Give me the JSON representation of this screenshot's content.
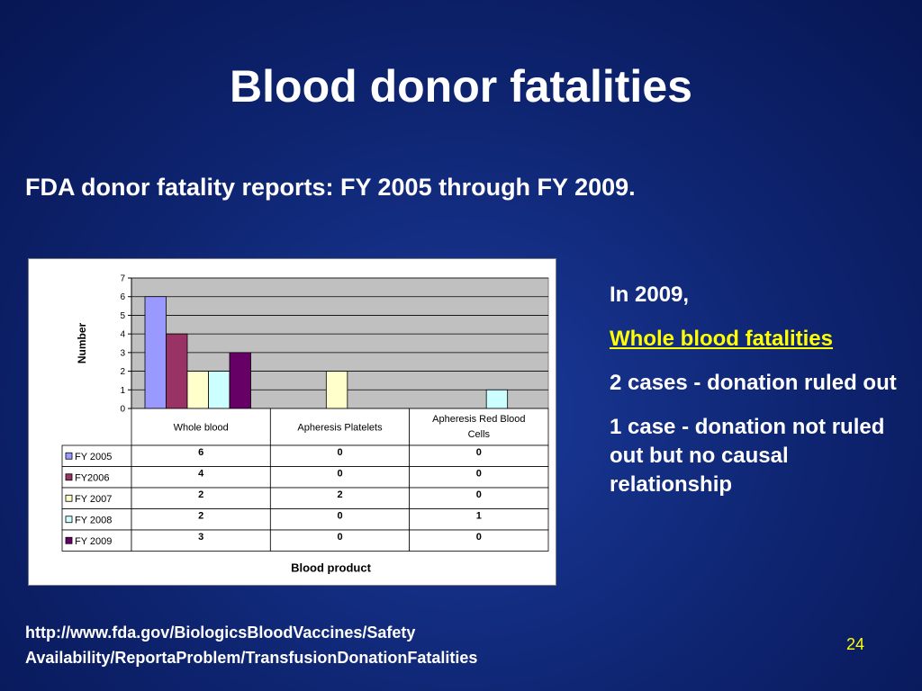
{
  "slide": {
    "title": "Blood donor fatalities",
    "subtitle": "FDA donor fatality reports: FY 2005 through FY 2009.",
    "side_text": {
      "line1": "In 2009,",
      "highlight": "Whole blood fatalities",
      "line3": "2 cases - donation ruled out",
      "line4": "1 case - donation not ruled out but no causal relationship"
    },
    "source_url_line1": "http://www.fda.gov/BiologicsBloodVaccines/Safety",
    "source_url_line2": "Availability/ReportaProblem/TransfusionDonationFatalities",
    "page_number": "24"
  },
  "chart_data": {
    "type": "bar",
    "title": "",
    "xlabel": "Blood product",
    "ylabel": "Number",
    "ylim": [
      0,
      7
    ],
    "yticks": [
      0,
      1,
      2,
      3,
      4,
      5,
      6,
      7
    ],
    "grid": true,
    "legend": "data-table-left",
    "categories": [
      "Whole blood",
      "Apheresis Platelets",
      "Apheresis Red Blood Cells"
    ],
    "series": [
      {
        "name": "FY 2005",
        "values": [
          6,
          0,
          0
        ],
        "color": "#9999ff"
      },
      {
        "name": "FY2006",
        "values": [
          4,
          0,
          0
        ],
        "color": "#993366"
      },
      {
        "name": "FY 2007",
        "values": [
          2,
          2,
          0
        ],
        "color": "#ffffcc"
      },
      {
        "name": "FY 2008",
        "values": [
          2,
          0,
          1
        ],
        "color": "#ccffff"
      },
      {
        "name": "FY 2009",
        "values": [
          3,
          0,
          0
        ],
        "color": "#660066"
      }
    ],
    "plot_background": "#c0c0c0"
  }
}
